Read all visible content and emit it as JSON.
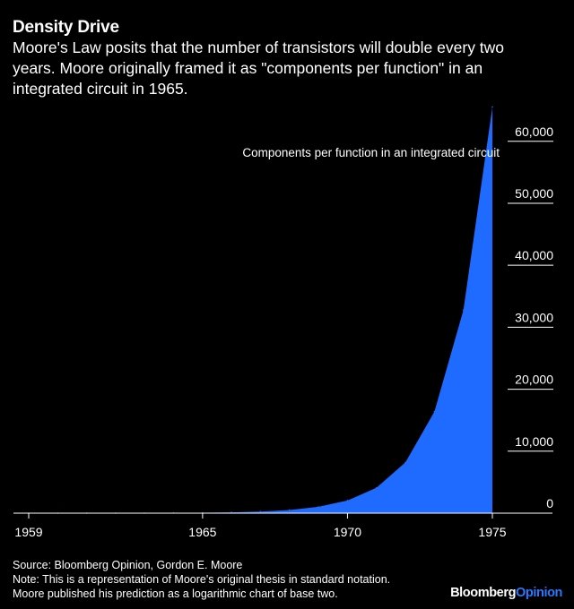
{
  "header": {
    "title": "Density Drive",
    "subtitle": "Moore's Law posits that the number of transistors will double every two years. Moore originally framed it as \"components per function\" in an integrated circuit in 1965."
  },
  "chart_data": {
    "type": "area",
    "title": "Density Drive",
    "series_label": "Components per function in an integrated circuit",
    "x": [
      1959,
      1960,
      1961,
      1962,
      1963,
      1964,
      1965,
      1966,
      1967,
      1968,
      1969,
      1970,
      1971,
      1972,
      1973,
      1974,
      1975
    ],
    "values": [
      1,
      2,
      4,
      8,
      16,
      32,
      64,
      128,
      256,
      512,
      1024,
      2048,
      4096,
      8192,
      16384,
      32768,
      65536
    ],
    "xlim": [
      1959,
      1977
    ],
    "ylim": [
      0,
      63000
    ],
    "x_ticks": [
      1959,
      1965,
      1970,
      1975
    ],
    "x_tick_labels": [
      "1959",
      "1965",
      "1970",
      "1975"
    ],
    "y_ticks": [
      0,
      10000,
      20000,
      30000,
      40000,
      50000,
      60000
    ],
    "y_tick_labels": [
      "0",
      "10,000",
      "20,000",
      "30,000",
      "40,000",
      "50,000",
      "60,000"
    ],
    "y_axis_position": "right",
    "grid": false,
    "color": "#1f6bff"
  },
  "footer": {
    "source": "Source: Bloomberg Opinion, Gordon E. Moore",
    "note": "Note: This is a representation of Moore's original thesis in standard notation.",
    "note2": "Moore published his prediction as a logarithmic chart of base two."
  },
  "brand": {
    "part1": "Bloomberg",
    "part2": "Opinion"
  }
}
